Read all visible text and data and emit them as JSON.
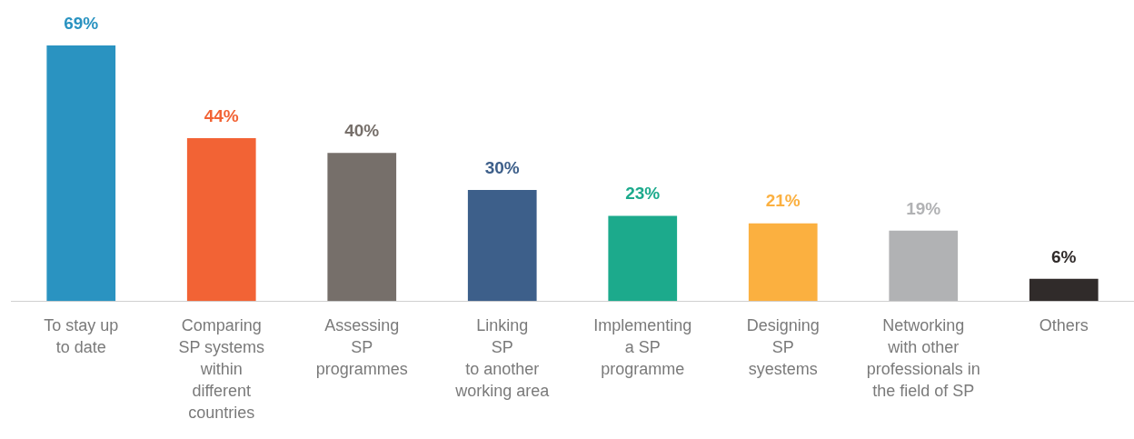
{
  "chart_data": {
    "type": "bar",
    "categories": [
      "To stay up\nto date",
      "Comparing\nSP systems\nwithin\ndifferent\ncountries",
      "Assessing\nSP\nprogrammes",
      "Linking\nSP\nto another\nworking area",
      "Implementing\na SP\nprogramme",
      "Designing\nSP\nsyestems",
      "Networking\nwith other\nprofessionals in\nthe field of SP",
      "Others"
    ],
    "values": [
      69,
      44,
      40,
      30,
      23,
      21,
      19,
      6
    ],
    "colors": [
      "#2a93c1",
      "#f26335",
      "#766f6a",
      "#3d5f8a",
      "#1caa8c",
      "#fbb040",
      "#b1b2b4",
      "#302b2a"
    ],
    "value_labels": [
      "69%",
      "44%",
      "40%",
      "30%",
      "23%",
      "21%",
      "19%",
      "6%"
    ],
    "grid": false,
    "legend": false
  }
}
